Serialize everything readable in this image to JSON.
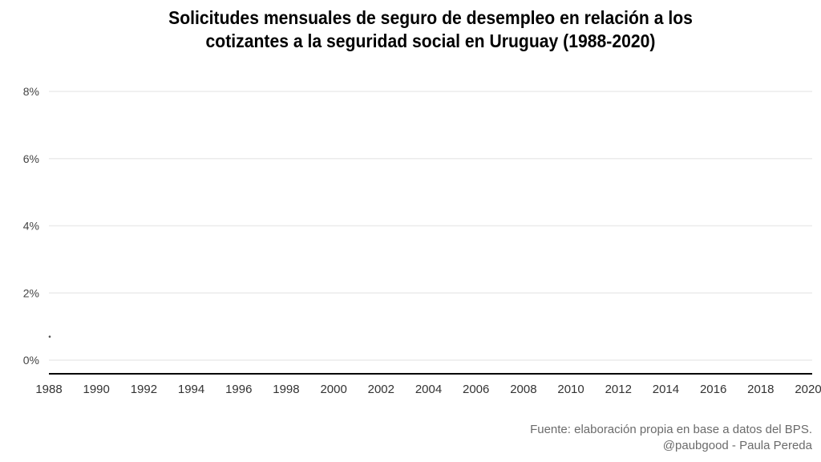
{
  "title_lines": [
    "Solicitudes mensuales de seguro de desempleo en relación a los",
    "cotizantes a la seguridad social en Uruguay (1988-2020)"
  ],
  "caption_lines": [
    "Fuente: elaboración propia en base a datos del BPS.",
    "@paubgood - Paula Pereda"
  ],
  "chart_data": {
    "type": "line",
    "title": "Solicitudes mensuales de seguro de desempleo en relación a los cotizantes a la seguridad social en Uruguay (1988-2020)",
    "xlabel": "",
    "ylabel": "",
    "xlim": [
      1988,
      2020
    ],
    "ylim": [
      0,
      8
    ],
    "x_ticks": [
      1988,
      1990,
      1992,
      1994,
      1996,
      1998,
      2000,
      2002,
      2004,
      2006,
      2008,
      2010,
      2012,
      2014,
      2016,
      2018,
      2020
    ],
    "y_ticks": [
      0,
      2,
      4,
      6,
      8
    ],
    "y_tick_labels": [
      "0%",
      "2%",
      "4%",
      "6%",
      "8%"
    ],
    "grid": "horizontal",
    "series": [
      {
        "x": [
          1988.0
        ],
        "y": [
          0.7
        ]
      }
    ],
    "series_color": "#555555",
    "caption": "Fuente: elaboración propia en base a datos del BPS. @paubgood - Paula Pereda"
  }
}
